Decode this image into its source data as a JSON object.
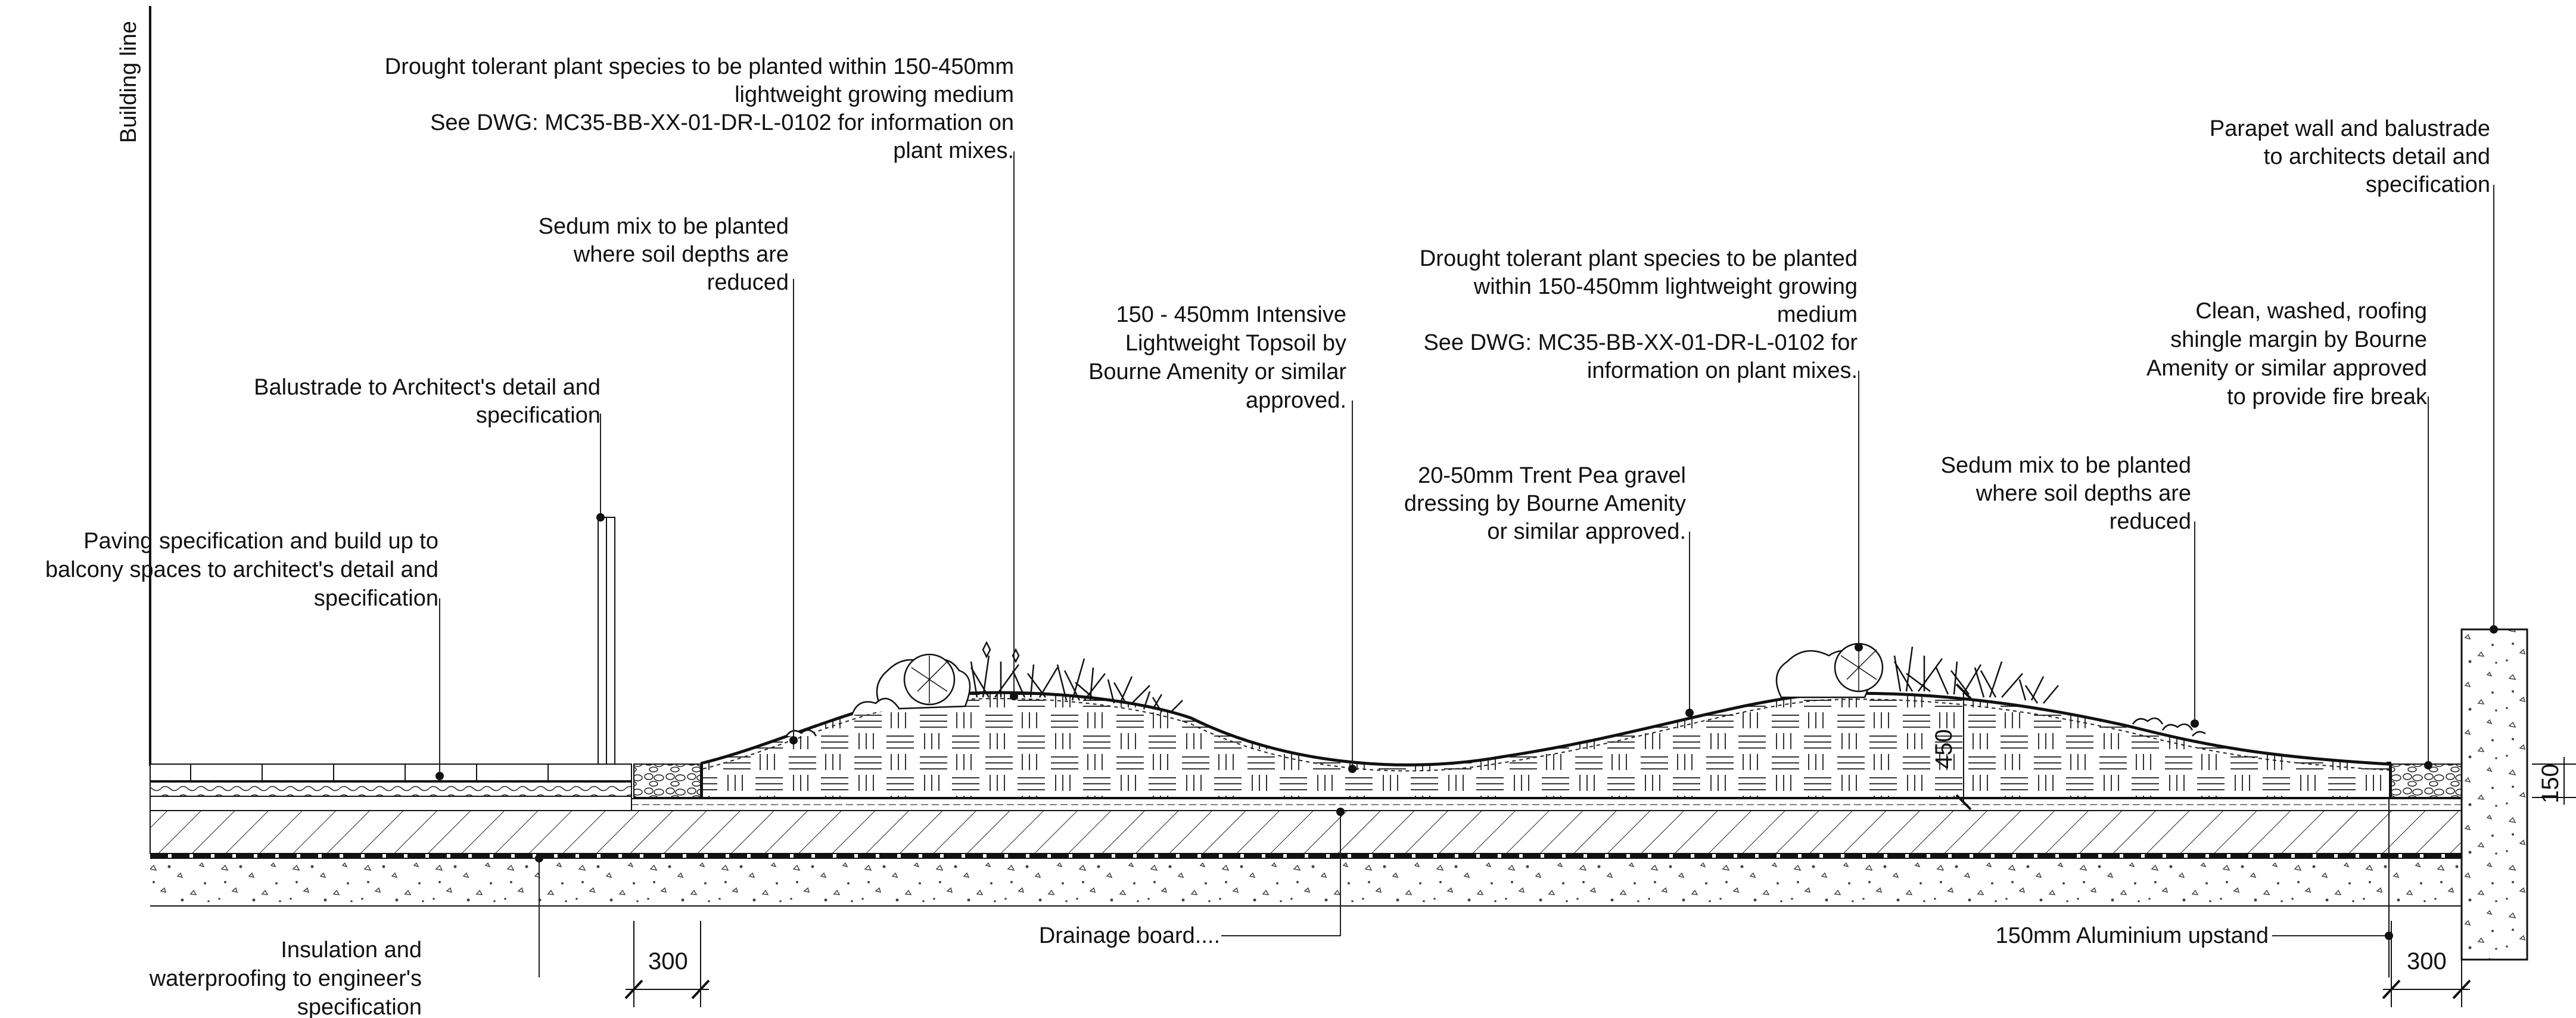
{
  "building_line": "Building line",
  "annotations": {
    "plants_left": [
      "Drought tolerant plant species to be planted within 150-450mm",
      "lightweight growing medium",
      "See DWG: MC35-BB-XX-01-DR-L-0102  for information on",
      "plant mixes."
    ],
    "sedum_left": [
      "Sedum mix to be planted",
      "where soil depths are",
      "reduced"
    ],
    "balustrade_left": [
      "Balustrade to Architect's detail and",
      "specification"
    ],
    "paving": [
      "Paving specification and build up to",
      "balcony spaces to architect's detail and",
      "specification"
    ],
    "topsoil": [
      "150 - 450mm Intensive",
      "Lightweight Topsoil by",
      "Bourne Amenity or similar",
      "approved."
    ],
    "plants_right": [
      "Drought tolerant plant species to be planted",
      "within 150-450mm lightweight growing",
      "medium",
      "See DWG: MC35-BB-XX-01-DR-L-0102 for",
      "information on plant mixes."
    ],
    "gravel": [
      "20-50mm Trent Pea gravel",
      "dressing by Bourne Amenity",
      "or similar approved."
    ],
    "sedum_right": [
      "Sedum mix to be planted",
      "where soil depths are",
      "reduced"
    ],
    "parapet": [
      "Parapet wall and balustrade",
      "to architects detail and",
      "specification"
    ],
    "shingle": [
      "Clean, washed, roofing",
      "shingle margin by Bourne",
      "Amenity or similar approved",
      "to provide fire break"
    ],
    "insulation": [
      "Insulation and",
      "waterproofing to engineer's",
      "specification"
    ],
    "drainage": [
      "Drainage board...."
    ],
    "upstand": [
      "150mm Aluminium upstand"
    ]
  },
  "dimensions": {
    "left_margin": "300",
    "right_margin": "300",
    "soil_depth": "450",
    "upstand_height": "150"
  }
}
